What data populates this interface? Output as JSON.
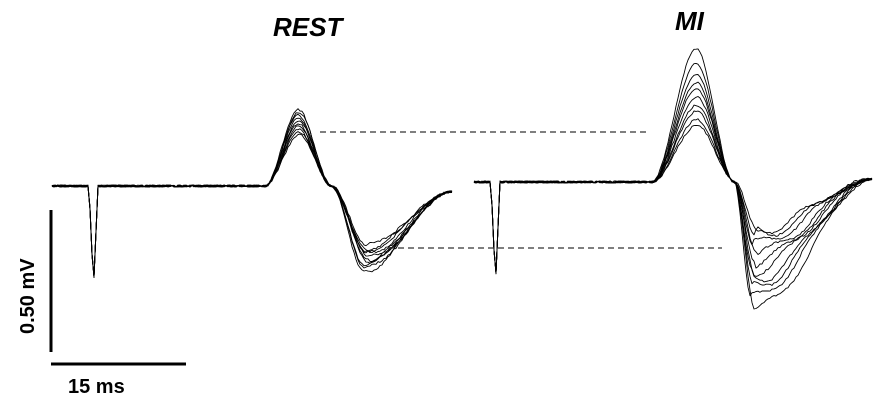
{
  "chart_data": {
    "type": "line",
    "panels": [
      {
        "title": "REST",
        "n_traces": 10,
        "peak_mV": [
          0.24,
          0.25,
          0.22,
          0.27,
          0.2,
          0.21,
          0.23,
          0.19,
          0.26,
          0.18
        ],
        "trough_mV": [
          -0.27,
          -0.29,
          -0.24,
          -0.3,
          -0.22,
          -0.26,
          -0.28,
          -0.21,
          -0.25,
          -0.23
        ],
        "stimulus_artifact_mV": -0.36,
        "reference_lines": [
          "dashed at max peak",
          "dashed at min trough"
        ]
      },
      {
        "title": "MI",
        "n_traces": 10,
        "peak_mV": [
          0.47,
          0.42,
          0.38,
          0.35,
          0.33,
          0.3,
          0.27,
          0.25,
          0.22,
          0.2
        ],
        "trough_mV": [
          -0.45,
          -0.41,
          -0.37,
          -0.34,
          -0.31,
          -0.28,
          -0.25,
          -0.22,
          -0.19,
          -0.17
        ],
        "stimulus_artifact_mV": -0.36
      }
    ],
    "scale_bars": {
      "voltage": {
        "label": "0.50 mV",
        "value_mV": 0.5
      },
      "time": {
        "label": "15 ms",
        "value_ms": 15
      }
    },
    "grid": false,
    "legend": "none"
  }
}
